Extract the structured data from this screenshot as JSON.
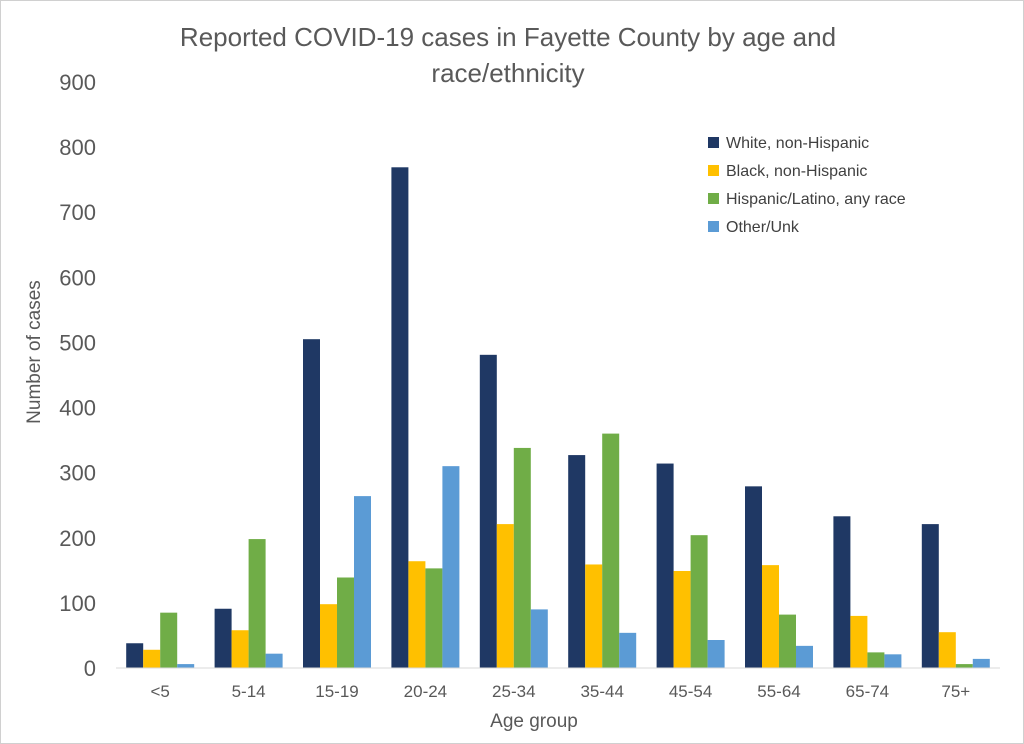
{
  "chart_data": {
    "type": "bar",
    "title": "Reported COVID-19 cases in Fayette County by age and race/ethnicity",
    "title_lines": [
      "Reported COVID-19 cases in Fayette County by age and",
      "race/ethnicity"
    ],
    "xlabel": "Age group",
    "ylabel": "Number of cases",
    "ylim": [
      0,
      900
    ],
    "yticks": [
      0,
      100,
      200,
      300,
      400,
      500,
      600,
      700,
      800,
      900
    ],
    "grid": false,
    "legend_position": "top-right",
    "categories": [
      "<5",
      "5-14",
      "15-19",
      "20-24",
      "25-34",
      "35-44",
      "45-54",
      "55-64",
      "65-74",
      "75+"
    ],
    "series": [
      {
        "name": "White, non-Hispanic",
        "color": "#1f3864",
        "values": [
          38,
          91,
          505,
          769,
          481,
          327,
          314,
          279,
          233,
          221
        ]
      },
      {
        "name": "Black, non-Hispanic",
        "color": "#ffc000",
        "values": [
          28,
          58,
          98,
          164,
          221,
          159,
          149,
          158,
          80,
          55
        ]
      },
      {
        "name": "Hispanic/Latino, any race",
        "color": "#70ad47",
        "values": [
          85,
          198,
          139,
          153,
          338,
          360,
          204,
          82,
          24,
          6
        ]
      },
      {
        "name": "Other/Unk",
        "color": "#5b9bd5",
        "values": [
          6,
          22,
          264,
          310,
          90,
          54,
          43,
          34,
          21,
          14
        ]
      }
    ]
  }
}
